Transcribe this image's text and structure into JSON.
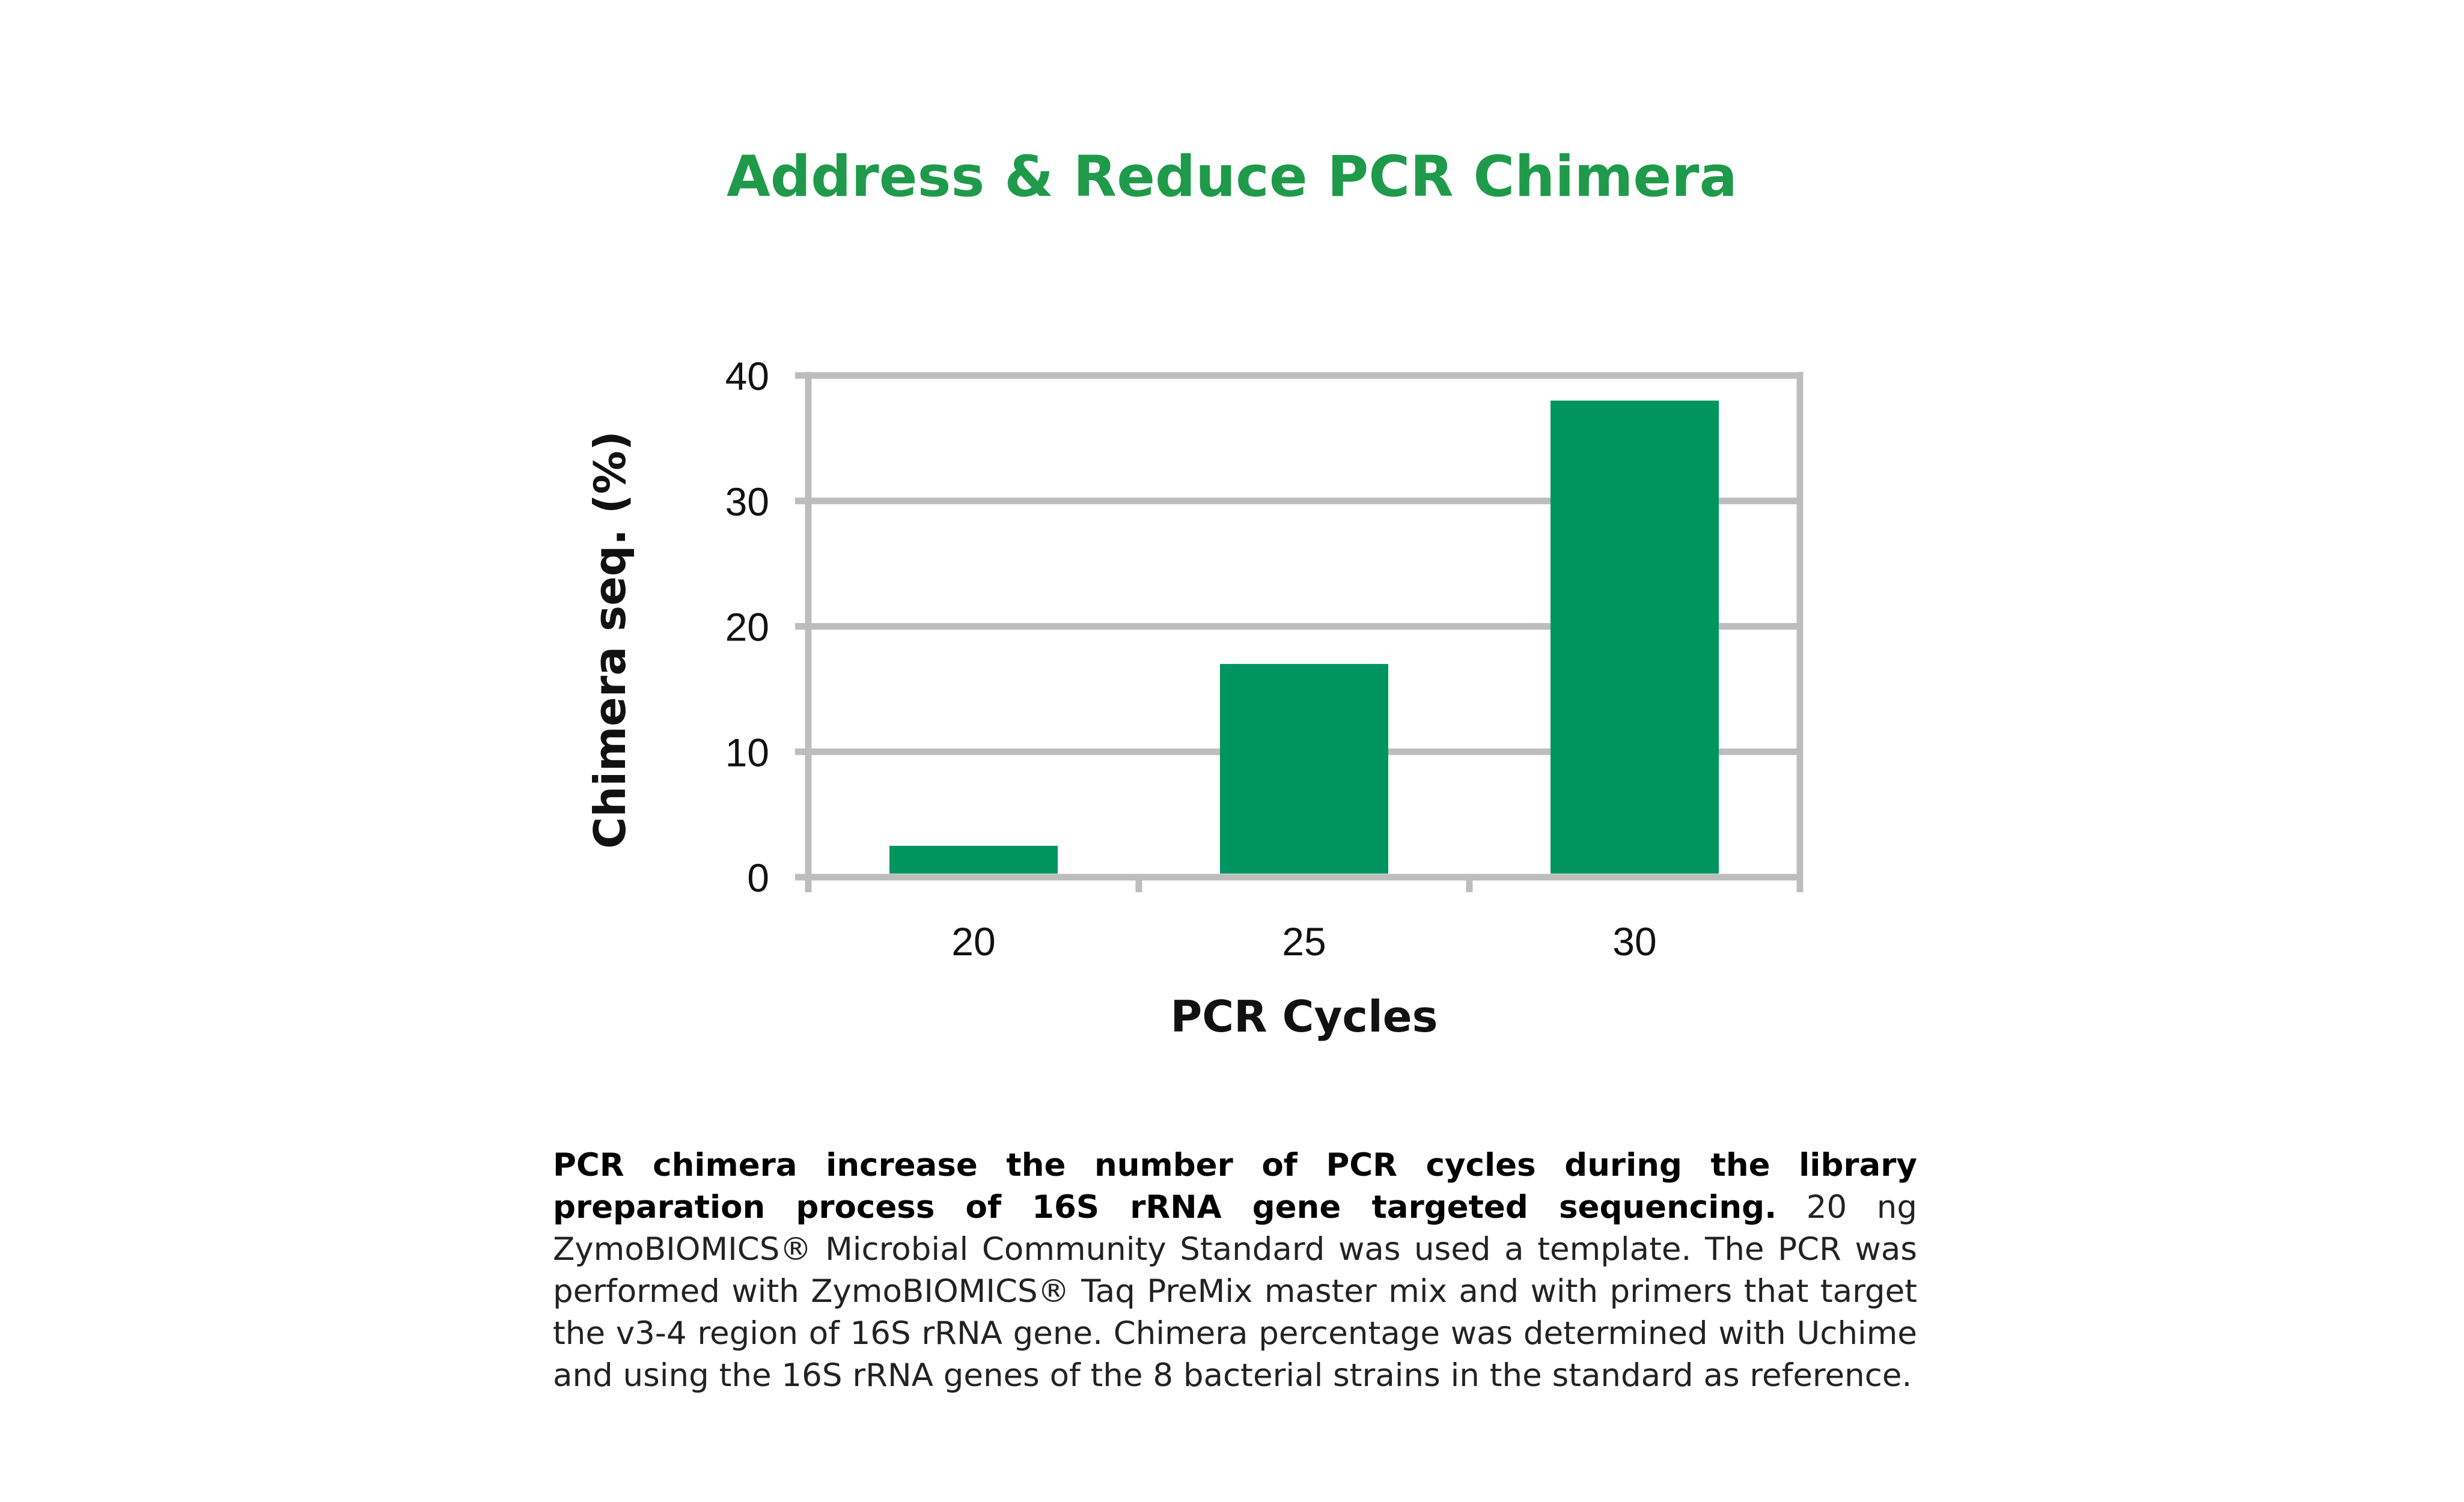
{
  "header": {
    "title": "Address & Reduce PCR Chimera"
  },
  "caption": {
    "bold": "PCR chimera increase the number of PCR cycles during the library preparation process of 16S rRNA gene targeted sequencing.",
    "body": " 20 ng ZymoBIOMICS® Microbial Community Standard was used a template. The PCR was performed with ZymoBIOMICS® Taq PreMix master mix and with primers that target the v3-4 region of 16S rRNA gene. Chimera  percentage was determined with Uchime and using the 16S rRNA genes of the 8 bacterial strains in the standard as reference."
  },
  "chart_data": {
    "type": "bar",
    "categories": [
      "20",
      "25",
      "30"
    ],
    "values": [
      2.5,
      17,
      38
    ],
    "xlabel": "PCR Cycles",
    "ylabel": "Chimera seq. (%)",
    "ylim": [
      0,
      40
    ],
    "yticks": [
      "0",
      "10",
      "20",
      "30",
      "40"
    ],
    "grid": true,
    "legend": "none",
    "bar_color": "#009460",
    "axis_color": "#bdbdbd"
  }
}
